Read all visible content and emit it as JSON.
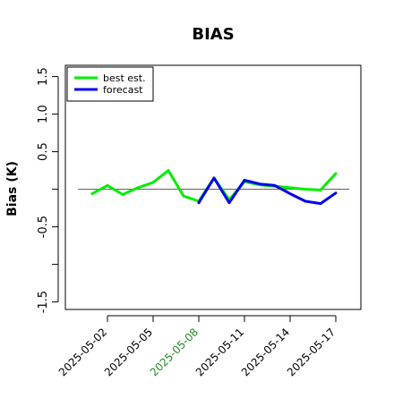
{
  "chart_data": {
    "type": "line",
    "title": "BIAS",
    "xlabel": "",
    "ylabel": "Bias (K)",
    "ylim": [
      -1.6,
      1.65
    ],
    "grid": false,
    "legend_position": "top-left",
    "reference_line_y": 0,
    "x_ticks": [
      "2025-05-02",
      "2025-05-05",
      "2025-05-08",
      "2025-05-11",
      "2025-05-14",
      "2025-05-17"
    ],
    "highlighted_tick": "2025-05-08",
    "highlight_color": "#228B22",
    "y_ticks": [
      -1.5,
      -1.0,
      -0.5,
      0.0,
      0.5,
      1.0,
      1.5
    ],
    "y_tick_labels": [
      "-1.5",
      "",
      "-0.5",
      "",
      "0.5",
      "1.0",
      "1.5"
    ],
    "x": [
      "2025-05-01",
      "2025-05-02",
      "2025-05-03",
      "2025-05-04",
      "2025-05-05",
      "2025-05-06",
      "2025-05-07",
      "2025-05-08",
      "2025-05-09",
      "2025-05-10",
      "2025-05-11",
      "2025-05-12",
      "2025-05-13",
      "2025-05-14",
      "2025-05-15",
      "2025-05-16",
      "2025-05-17"
    ],
    "series": [
      {
        "name": "best est.",
        "color": "#00ee00",
        "values": [
          -0.06,
          0.05,
          -0.07,
          0.02,
          0.09,
          0.25,
          -0.09,
          -0.16,
          0.15,
          -0.14,
          0.1,
          0.06,
          0.04,
          0.02,
          0.0,
          -0.01,
          0.21
        ]
      },
      {
        "name": "forecast",
        "color": "#0000ee",
        "values": [
          null,
          null,
          null,
          null,
          null,
          null,
          null,
          -0.18,
          0.15,
          -0.18,
          0.12,
          0.07,
          0.05,
          -0.06,
          -0.16,
          -0.19,
          -0.05
        ]
      }
    ]
  }
}
